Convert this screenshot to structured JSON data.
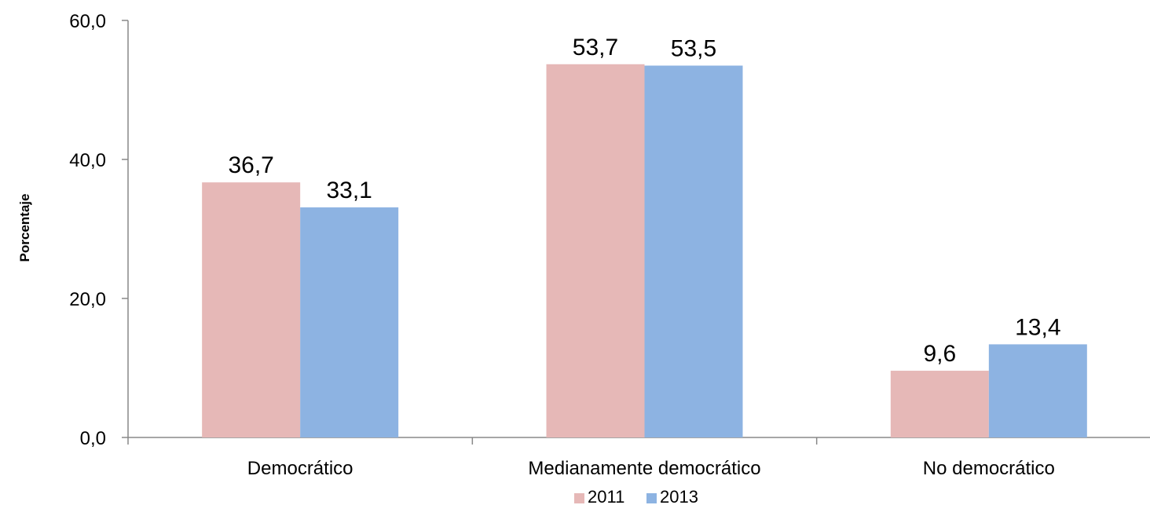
{
  "chart_data": {
    "type": "bar",
    "title": "",
    "xlabel": "",
    "ylabel": "Porcentaje",
    "categories": [
      "Democrático",
      "Medianamente democrático",
      "No democrático"
    ],
    "series": [
      {
        "name": "2011",
        "values": [
          36.7,
          53.7,
          9.6
        ],
        "labels": [
          "36,7",
          "53,7",
          "9,6"
        ],
        "color": "#e6b8b7"
      },
      {
        "name": "2013",
        "values": [
          33.1,
          53.5,
          13.4
        ],
        "labels": [
          "33,1",
          "53,5",
          "13,4"
        ],
        "color": "#8db3e2"
      }
    ],
    "ylim": [
      0,
      60
    ],
    "yticks": [
      0,
      20,
      40,
      60
    ],
    "ytick_labels": [
      "0,0",
      "20,0",
      "40,0",
      "60,0"
    ],
    "grid": false,
    "legend_position": "bottom"
  }
}
